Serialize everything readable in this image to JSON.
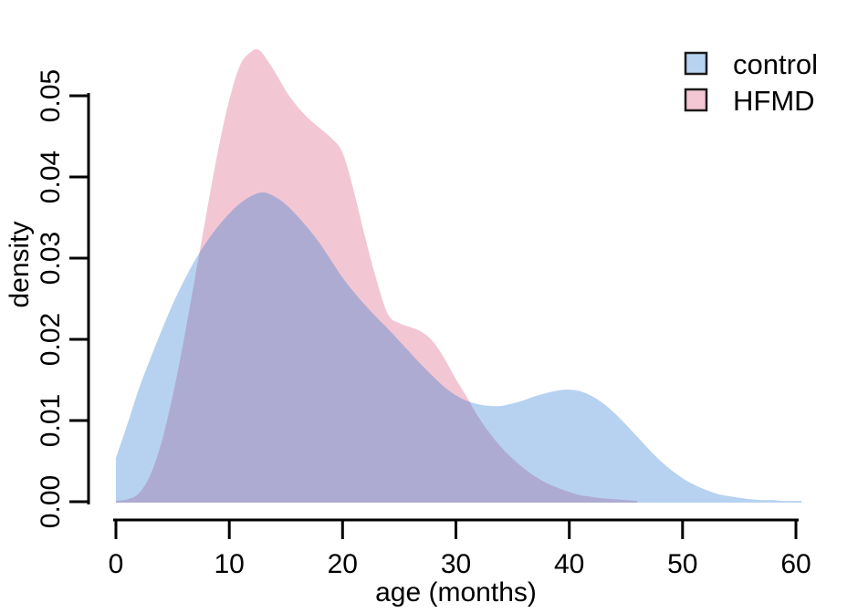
{
  "chart_data": {
    "type": "area",
    "subtype": "kernel-density",
    "title": "",
    "xlabel": "age (months)",
    "ylabel": "density",
    "xlim": [
      0,
      60
    ],
    "ylim": [
      0,
      0.05
    ],
    "grid": false,
    "legend_position": "top-right",
    "x_ticks": {
      "values": [
        0,
        10,
        20,
        30,
        40,
        50,
        60
      ],
      "labels": [
        "0",
        "10",
        "20",
        "30",
        "40",
        "50",
        "60"
      ]
    },
    "y_ticks": {
      "values": [
        0,
        0.01,
        0.02,
        0.03,
        0.04,
        0.05
      ],
      "labels": [
        "0.00",
        "0.01",
        "0.02",
        "0.03",
        "0.04",
        "0.05"
      ]
    },
    "series": [
      {
        "name": "control",
        "fill": "rgba(15,105,210,0.30)",
        "swatch": "#b7d3f1",
        "points": [
          [
            0,
            0.0054
          ],
          [
            1,
            0.0095
          ],
          [
            2,
            0.0138
          ],
          [
            3,
            0.0175
          ],
          [
            4,
            0.021
          ],
          [
            5,
            0.0243
          ],
          [
            6,
            0.0272
          ],
          [
            7,
            0.0298
          ],
          [
            8,
            0.032
          ],
          [
            9,
            0.0339
          ],
          [
            10,
            0.0355
          ],
          [
            11,
            0.0368
          ],
          [
            12,
            0.0377
          ],
          [
            13,
            0.0381
          ],
          [
            14,
            0.0376
          ],
          [
            15,
            0.0366
          ],
          [
            16,
            0.0352
          ],
          [
            17,
            0.0336
          ],
          [
            18,
            0.0318
          ],
          [
            19,
            0.0297
          ],
          [
            20,
            0.0276
          ],
          [
            21,
            0.0258
          ],
          [
            22,
            0.0242
          ],
          [
            23,
            0.0227
          ],
          [
            24,
            0.0213
          ],
          [
            25,
            0.0198
          ],
          [
            26,
            0.0183
          ],
          [
            27,
            0.0168
          ],
          [
            28,
            0.0154
          ],
          [
            29,
            0.0141
          ],
          [
            30,
            0.0131
          ],
          [
            31,
            0.0124
          ],
          [
            32,
            0.012
          ],
          [
            33,
            0.0118
          ],
          [
            34,
            0.0118
          ],
          [
            35,
            0.0121
          ],
          [
            36,
            0.0125
          ],
          [
            37,
            0.013
          ],
          [
            38,
            0.0134
          ],
          [
            39,
            0.0137
          ],
          [
            40,
            0.0138
          ],
          [
            41,
            0.0136
          ],
          [
            42,
            0.013
          ],
          [
            43,
            0.0121
          ],
          [
            44,
            0.0109
          ],
          [
            45,
            0.0095
          ],
          [
            46,
            0.008
          ],
          [
            47,
            0.0065
          ],
          [
            48,
            0.0051
          ],
          [
            49,
            0.0039
          ],
          [
            50,
            0.0029
          ],
          [
            51,
            0.0021
          ],
          [
            52,
            0.0015
          ],
          [
            53,
            0.001
          ],
          [
            54,
            0.0007
          ],
          [
            55,
            0.0005
          ],
          [
            56,
            0.0003
          ],
          [
            57,
            0.0002
          ],
          [
            58,
            0.0002
          ],
          [
            59,
            0.0001
          ],
          [
            60.5,
            0.0001
          ]
        ]
      },
      {
        "name": "HFMD",
        "fill": "#f2c7d3",
        "swatch": "#f2c7d3",
        "points": [
          [
            0,
            0.0001
          ],
          [
            1,
            0.0003
          ],
          [
            2,
            0.001
          ],
          [
            3,
            0.0032
          ],
          [
            4,
            0.0072
          ],
          [
            5,
            0.013
          ],
          [
            6,
            0.02
          ],
          [
            7,
            0.0278
          ],
          [
            8,
            0.0356
          ],
          [
            9,
            0.0432
          ],
          [
            10,
            0.0495
          ],
          [
            11,
            0.0539
          ],
          [
            12,
            0.0555
          ],
          [
            12.5,
            0.0557
          ],
          [
            13,
            0.0551
          ],
          [
            14,
            0.053
          ],
          [
            15,
            0.0506
          ],
          [
            16,
            0.0487
          ],
          [
            17,
            0.0472
          ],
          [
            18,
            0.046
          ],
          [
            19,
            0.0448
          ],
          [
            20,
            0.043
          ],
          [
            21,
            0.0382
          ],
          [
            22,
            0.0325
          ],
          [
            23,
            0.0273
          ],
          [
            24,
            0.0231
          ],
          [
            25,
            0.022
          ],
          [
            26,
            0.0215
          ],
          [
            27,
            0.0209
          ],
          [
            28,
            0.0197
          ],
          [
            29,
            0.0176
          ],
          [
            30,
            0.0151
          ],
          [
            31,
            0.0128
          ],
          [
            32,
            0.0104
          ],
          [
            33,
            0.0084
          ],
          [
            34,
            0.0067
          ],
          [
            35,
            0.0053
          ],
          [
            36,
            0.0041
          ],
          [
            37,
            0.0031
          ],
          [
            38,
            0.0023
          ],
          [
            39,
            0.0017
          ],
          [
            40,
            0.0012
          ],
          [
            41,
            0.0008
          ],
          [
            42,
            0.0006
          ],
          [
            43,
            0.0004
          ],
          [
            44,
            0.0003
          ],
          [
            45,
            0.0002
          ],
          [
            46,
            0.0001
          ]
        ]
      }
    ]
  },
  "legend": {
    "items": [
      {
        "label": "control"
      },
      {
        "label": "HFMD"
      }
    ]
  },
  "colors": {
    "background": "#ffffff",
    "axis": "#000000",
    "text": "#000000",
    "control_area": "#b8d5f2",
    "hfmd_area": "#f2c7d3",
    "overlap_area": "#b1aed6",
    "legend_border": "#1a1a1a"
  }
}
